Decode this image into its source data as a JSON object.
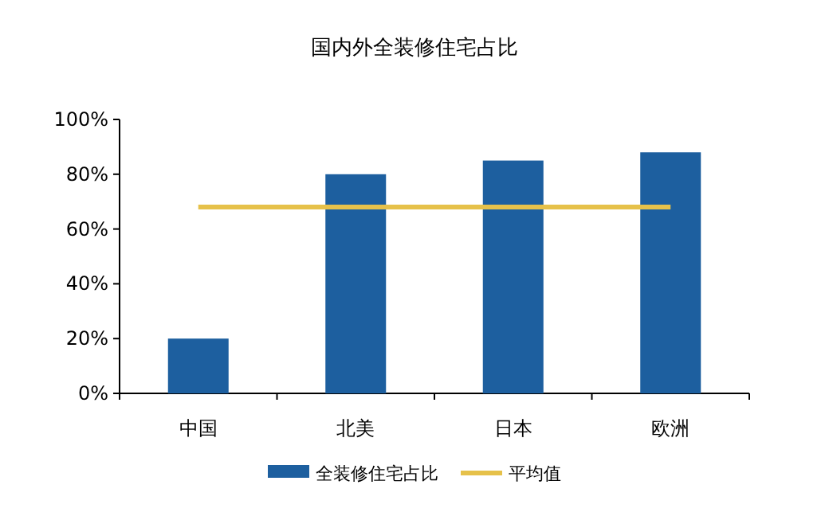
{
  "chart_data": {
    "type": "bar",
    "title": "国内外全装修住宅占比",
    "categories": [
      "中国",
      "北美",
      "日本",
      "欧洲"
    ],
    "series": [
      {
        "name": "全装修住宅占比",
        "color": "#1d5f9f",
        "values": [
          20,
          80,
          85,
          88
        ]
      },
      {
        "name": "平均值",
        "type": "line",
        "color": "#e6c14a",
        "values": [
          68,
          68,
          68,
          68
        ]
      }
    ],
    "ylim": [
      0,
      100
    ],
    "yticks": [
      {
        "value": 0,
        "label": "0%"
      },
      {
        "value": 20,
        "label": "20%"
      },
      {
        "value": 40,
        "label": "40%"
      },
      {
        "value": 60,
        "label": "60%"
      },
      {
        "value": 80,
        "label": "80%"
      },
      {
        "value": 100,
        "label": "100%"
      }
    ],
    "grid": false,
    "legend": "bottom",
    "marker": "none",
    "line_style": "solid"
  }
}
